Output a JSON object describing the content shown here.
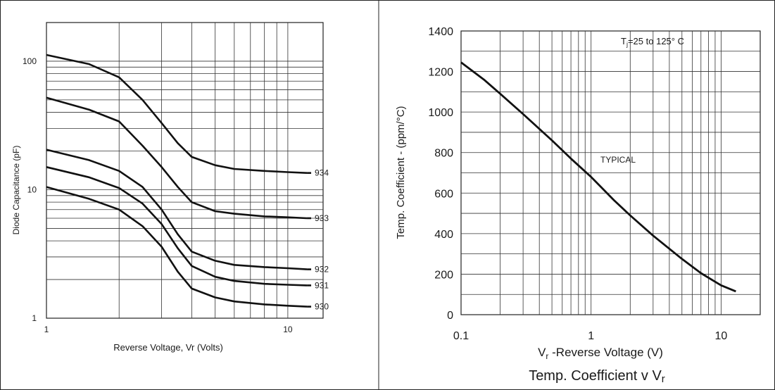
{
  "chart_data": [
    {
      "type": "line",
      "title": "",
      "xlabel": "Reverse Voltage, Vr (Volts)",
      "ylabel": "Diode Capacitance (pF)",
      "xscale": "log",
      "yscale": "log",
      "xlim": [
        1,
        14
      ],
      "ylim": [
        1,
        200
      ],
      "xticks": [
        {
          "v": 1,
          "label": "1"
        },
        {
          "v": 10,
          "label": "10"
        }
      ],
      "yticks": [
        {
          "v": 1,
          "label": "1"
        },
        {
          "v": 10,
          "label": "10"
        },
        {
          "v": 100,
          "label": "100"
        }
      ],
      "grid": true,
      "series": [
        {
          "name": "934",
          "points": [
            [
              1,
              112
            ],
            [
              1.5,
              95
            ],
            [
              2,
              75
            ],
            [
              2.5,
              50
            ],
            [
              3,
              33
            ],
            [
              3.5,
              23
            ],
            [
              4,
              18
            ],
            [
              5,
              15.5
            ],
            [
              6,
              14.5
            ],
            [
              8,
              14
            ],
            [
              10,
              13.7
            ],
            [
              12,
              13.5
            ]
          ]
        },
        {
          "name": "933",
          "points": [
            [
              1,
              52
            ],
            [
              1.5,
              42
            ],
            [
              2,
              34
            ],
            [
              2.5,
              22
            ],
            [
              3,
              15
            ],
            [
              3.5,
              10.5
            ],
            [
              4,
              8
            ],
            [
              5,
              6.8
            ],
            [
              6,
              6.5
            ],
            [
              8,
              6.2
            ],
            [
              10,
              6.1
            ],
            [
              12,
              6
            ]
          ]
        },
        {
          "name": "932",
          "points": [
            [
              1,
              20.5
            ],
            [
              1.5,
              17
            ],
            [
              2,
              14
            ],
            [
              2.5,
              10.5
            ],
            [
              3,
              7
            ],
            [
              3.5,
              4.5
            ],
            [
              4,
              3.3
            ],
            [
              5,
              2.8
            ],
            [
              6,
              2.6
            ],
            [
              8,
              2.5
            ],
            [
              10,
              2.45
            ],
            [
              12,
              2.4
            ]
          ]
        },
        {
          "name": "931",
          "points": [
            [
              1,
              15
            ],
            [
              1.5,
              12.5
            ],
            [
              2,
              10.3
            ],
            [
              2.5,
              7.8
            ],
            [
              3,
              5.4
            ],
            [
              3.5,
              3.5
            ],
            [
              4,
              2.55
            ],
            [
              5,
              2.1
            ],
            [
              6,
              1.95
            ],
            [
              8,
              1.85
            ],
            [
              10,
              1.82
            ],
            [
              12,
              1.8
            ]
          ]
        },
        {
          "name": "930",
          "points": [
            [
              1,
              10.5
            ],
            [
              1.5,
              8.5
            ],
            [
              2,
              7
            ],
            [
              2.5,
              5.2
            ],
            [
              3,
              3.6
            ],
            [
              3.5,
              2.3
            ],
            [
              4,
              1.7
            ],
            [
              5,
              1.45
            ],
            [
              6,
              1.35
            ],
            [
              8,
              1.28
            ],
            [
              10,
              1.25
            ],
            [
              12,
              1.23
            ]
          ]
        }
      ]
    },
    {
      "type": "line",
      "title": "Temp. Coefficient v Vr",
      "xlabel": "Vr -Reverse Voltage (V)",
      "ylabel": "Temp. Coefficient - (ppm/°C)",
      "xscale": "log",
      "yscale": "linear",
      "xlim": [
        0.1,
        20
      ],
      "ylim": [
        0,
        1400
      ],
      "xticks": [
        {
          "v": 0.1,
          "label": "0.1"
        },
        {
          "v": 1,
          "label": "1"
        },
        {
          "v": 10,
          "label": "10"
        }
      ],
      "yticks": [
        0,
        200,
        400,
        600,
        800,
        1000,
        1200,
        1400
      ],
      "grid": true,
      "annotations": [
        "Tj=25 to 125° C",
        "TYPICAL"
      ],
      "series": [
        {
          "name": "",
          "points": [
            [
              0.1,
              1245
            ],
            [
              0.15,
              1160
            ],
            [
              0.2,
              1090
            ],
            [
              0.3,
              990
            ],
            [
              0.5,
              860
            ],
            [
              0.7,
              770
            ],
            [
              1,
              680
            ],
            [
              1.5,
              565
            ],
            [
              2,
              490
            ],
            [
              3,
              390
            ],
            [
              5,
              275
            ],
            [
              7,
              205
            ],
            [
              10,
              145
            ],
            [
              13,
              115
            ]
          ]
        }
      ]
    }
  ]
}
